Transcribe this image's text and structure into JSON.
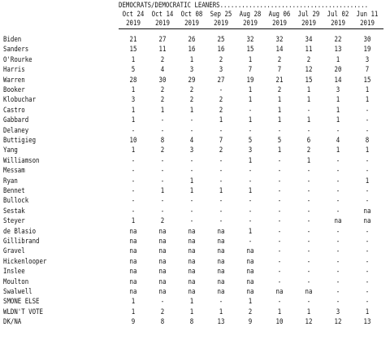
{
  "title": "DEMOCRATS/DEMOCRATIC LEANERS.........................................",
  "columns": [
    {
      "date": "Oct 24",
      "year": "2019"
    },
    {
      "date": "Oct 14",
      "year": "2019"
    },
    {
      "date": "Oct 08",
      "year": "2019"
    },
    {
      "date": "Sep 25",
      "year": "2019"
    },
    {
      "date": "Aug 28",
      "year": "2019"
    },
    {
      "date": "Aug 06",
      "year": "2019"
    },
    {
      "date": "Jul 29",
      "year": "2019"
    },
    {
      "date": "Jul 02",
      "year": "2019"
    },
    {
      "date": "Jun 11",
      "year": "2019"
    }
  ],
  "rows": [
    {
      "name": "Biden",
      "values": [
        "21",
        "27",
        "26",
        "25",
        "32",
        "32",
        "34",
        "22",
        "30"
      ]
    },
    {
      "name": "Sanders",
      "values": [
        "15",
        "11",
        "16",
        "16",
        "15",
        "14",
        "11",
        "13",
        "19"
      ]
    },
    {
      "name": "O'Rourke",
      "values": [
        "1",
        "2",
        "1",
        "2",
        "1",
        "2",
        "2",
        "1",
        "3"
      ]
    },
    {
      "name": "Harris",
      "values": [
        "5",
        "4",
        "3",
        "3",
        "7",
        "7",
        "12",
        "20",
        "7"
      ]
    },
    {
      "name": "Warren",
      "values": [
        "28",
        "30",
        "29",
        "27",
        "19",
        "21",
        "15",
        "14",
        "15"
      ]
    },
    {
      "name": "Booker",
      "values": [
        "1",
        "2",
        "2",
        "-",
        "1",
        "2",
        "1",
        "3",
        "1"
      ]
    },
    {
      "name": "Klobuchar",
      "values": [
        "3",
        "2",
        "2",
        "2",
        "1",
        "1",
        "1",
        "1",
        "1"
      ]
    },
    {
      "name": "Castro",
      "values": [
        "1",
        "1",
        "1",
        "2",
        "-",
        "1",
        "-",
        "1",
        "-"
      ]
    },
    {
      "name": "Gabbard",
      "values": [
        "1",
        "-",
        "-",
        "1",
        "1",
        "1",
        "1",
        "1",
        "-"
      ]
    },
    {
      "name": "Delaney",
      "values": [
        "-",
        "-",
        "-",
        "-",
        "-",
        "-",
        "-",
        "-",
        "-"
      ]
    },
    {
      "name": "Buttigieg",
      "values": [
        "10",
        "8",
        "4",
        "7",
        "5",
        "5",
        "6",
        "4",
        "8"
      ]
    },
    {
      "name": "Yang",
      "values": [
        "1",
        "2",
        "3",
        "2",
        "3",
        "1",
        "2",
        "1",
        "1"
      ]
    },
    {
      "name": "Williamson",
      "values": [
        "-",
        "-",
        "-",
        "-",
        "1",
        "-",
        "1",
        "-",
        "-"
      ]
    },
    {
      "name": "Messam",
      "values": [
        "-",
        "-",
        "-",
        "-",
        "-",
        "-",
        "-",
        "-",
        "-"
      ]
    },
    {
      "name": "Ryan",
      "values": [
        "-",
        "-",
        "1",
        "-",
        "-",
        "-",
        "-",
        "-",
        "1"
      ]
    },
    {
      "name": "Bennet",
      "values": [
        "-",
        "1",
        "1",
        "1",
        "1",
        "-",
        "-",
        "-",
        "-"
      ]
    },
    {
      "name": "Bullock",
      "values": [
        "-",
        "-",
        "-",
        "-",
        "-",
        "-",
        "-",
        "-",
        "-"
      ]
    },
    {
      "name": "Sestak",
      "values": [
        "-",
        "-",
        "-",
        "-",
        "-",
        "-",
        "-",
        "-",
        "na"
      ]
    },
    {
      "name": "Steyer",
      "values": [
        "1",
        "2",
        "-",
        "-",
        "-",
        "-",
        "-",
        "na",
        "na"
      ]
    },
    {
      "name": "de Blasio",
      "values": [
        "na",
        "na",
        "na",
        "na",
        "1",
        "-",
        "-",
        "-",
        "-"
      ]
    },
    {
      "name": "Gillibrand",
      "values": [
        "na",
        "na",
        "na",
        "na",
        "-",
        "-",
        "-",
        "-",
        "-"
      ]
    },
    {
      "name": "Gravel",
      "values": [
        "na",
        "na",
        "na",
        "na",
        "na",
        "-",
        "-",
        "-",
        "-"
      ]
    },
    {
      "name": "Hickenlooper",
      "values": [
        "na",
        "na",
        "na",
        "na",
        "na",
        "-",
        "-",
        "-",
        "-"
      ]
    },
    {
      "name": "Inslee",
      "values": [
        "na",
        "na",
        "na",
        "na",
        "na",
        "-",
        "-",
        "-",
        "-"
      ]
    },
    {
      "name": "Moulton",
      "values": [
        "na",
        "na",
        "na",
        "na",
        "na",
        "-",
        "-",
        "-",
        "-"
      ]
    },
    {
      "name": "Swalwell",
      "values": [
        "na",
        "na",
        "na",
        "na",
        "na",
        "na",
        "na",
        "-",
        "-"
      ]
    },
    {
      "name": "SMONE ELSE",
      "values": [
        "1",
        "-",
        "1",
        "-",
        "1",
        "-",
        "-",
        "-",
        "-"
      ]
    },
    {
      "name": "WLDN'T VOTE",
      "values": [
        "1",
        "2",
        "1",
        "1",
        "2",
        "1",
        "1",
        "3",
        "1"
      ]
    },
    {
      "name": "DK/NA",
      "values": [
        "9",
        "8",
        "8",
        "13",
        "9",
        "10",
        "12",
        "12",
        "13"
      ]
    }
  ]
}
